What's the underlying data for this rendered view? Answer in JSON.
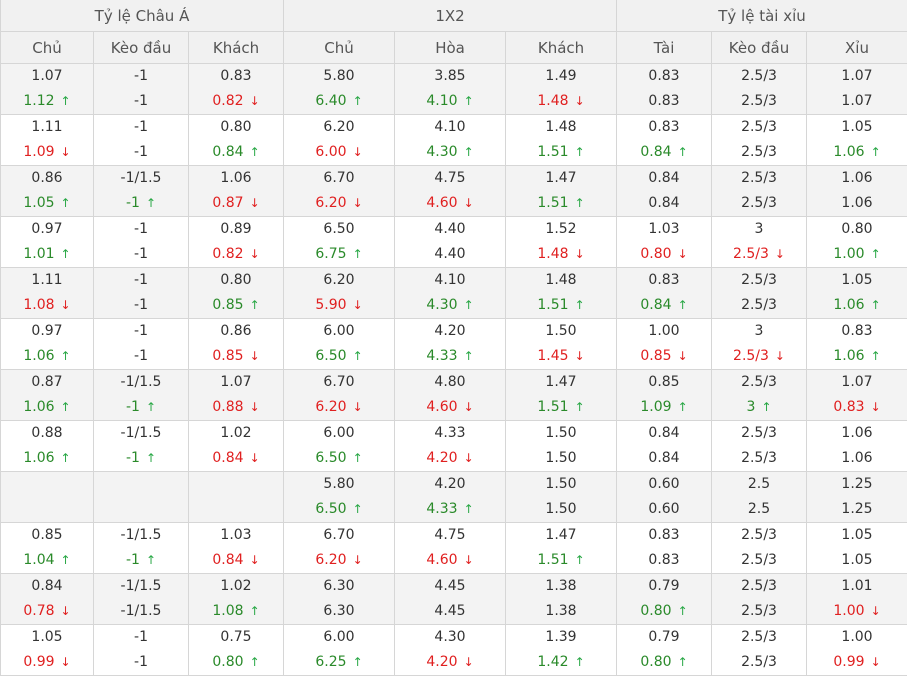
{
  "groups": [
    "Tỷ lệ Châu Á",
    "1X2",
    "Tỷ lệ tài xỉu"
  ],
  "subheaders": [
    "Chủ",
    "Kèo đầu",
    "Khách",
    "Chủ",
    "Hòa",
    "Khách",
    "Tài",
    "Kèo đầu",
    "Xỉu"
  ],
  "colors": {
    "up": "#2a8a2a",
    "down": "#e02020",
    "header_bg": "#f1f1f1",
    "shade_bg": "#f3f3f3"
  },
  "rows": [
    {
      "cells": [
        {
          "open": "1.07",
          "cur": "1.12",
          "dir": "up"
        },
        {
          "open": "-1",
          "cur": "-1",
          "dir": ""
        },
        {
          "open": "0.83",
          "cur": "0.82",
          "dir": "down"
        },
        {
          "open": "5.80",
          "cur": "6.40",
          "dir": "up"
        },
        {
          "open": "3.85",
          "cur": "4.10",
          "dir": "up"
        },
        {
          "open": "1.49",
          "cur": "1.48",
          "dir": "down"
        },
        {
          "open": "0.83",
          "cur": "0.83",
          "dir": ""
        },
        {
          "open": "2.5/3",
          "cur": "2.5/3",
          "dir": ""
        },
        {
          "open": "1.07",
          "cur": "1.07",
          "dir": ""
        }
      ]
    },
    {
      "cells": [
        {
          "open": "1.11",
          "cur": "1.09",
          "dir": "down"
        },
        {
          "open": "-1",
          "cur": "-1",
          "dir": ""
        },
        {
          "open": "0.80",
          "cur": "0.84",
          "dir": "up"
        },
        {
          "open": "6.20",
          "cur": "6.00",
          "dir": "down"
        },
        {
          "open": "4.10",
          "cur": "4.30",
          "dir": "up"
        },
        {
          "open": "1.48",
          "cur": "1.51",
          "dir": "up"
        },
        {
          "open": "0.83",
          "cur": "0.84",
          "dir": "up"
        },
        {
          "open": "2.5/3",
          "cur": "2.5/3",
          "dir": ""
        },
        {
          "open": "1.05",
          "cur": "1.06",
          "dir": "up"
        }
      ]
    },
    {
      "cells": [
        {
          "open": "0.86",
          "cur": "1.05",
          "dir": "up"
        },
        {
          "open": "-1/1.5",
          "cur": "-1",
          "dir": "up"
        },
        {
          "open": "1.06",
          "cur": "0.87",
          "dir": "down"
        },
        {
          "open": "6.70",
          "cur": "6.20",
          "dir": "down"
        },
        {
          "open": "4.75",
          "cur": "4.60",
          "dir": "down"
        },
        {
          "open": "1.47",
          "cur": "1.51",
          "dir": "up"
        },
        {
          "open": "0.84",
          "cur": "0.84",
          "dir": ""
        },
        {
          "open": "2.5/3",
          "cur": "2.5/3",
          "dir": ""
        },
        {
          "open": "1.06",
          "cur": "1.06",
          "dir": ""
        }
      ]
    },
    {
      "cells": [
        {
          "open": "0.97",
          "cur": "1.01",
          "dir": "up"
        },
        {
          "open": "-1",
          "cur": "-1",
          "dir": ""
        },
        {
          "open": "0.89",
          "cur": "0.82",
          "dir": "down"
        },
        {
          "open": "6.50",
          "cur": "6.75",
          "dir": "up"
        },
        {
          "open": "4.40",
          "cur": "4.40",
          "dir": ""
        },
        {
          "open": "1.52",
          "cur": "1.48",
          "dir": "down"
        },
        {
          "open": "1.03",
          "cur": "0.80",
          "dir": "down"
        },
        {
          "open": "3",
          "cur": "2.5/3",
          "dir": "down"
        },
        {
          "open": "0.80",
          "cur": "1.00",
          "dir": "up"
        }
      ]
    },
    {
      "cells": [
        {
          "open": "1.11",
          "cur": "1.08",
          "dir": "down"
        },
        {
          "open": "-1",
          "cur": "-1",
          "dir": ""
        },
        {
          "open": "0.80",
          "cur": "0.85",
          "dir": "up"
        },
        {
          "open": "6.20",
          "cur": "5.90",
          "dir": "down"
        },
        {
          "open": "4.10",
          "cur": "4.30",
          "dir": "up"
        },
        {
          "open": "1.48",
          "cur": "1.51",
          "dir": "up"
        },
        {
          "open": "0.83",
          "cur": "0.84",
          "dir": "up"
        },
        {
          "open": "2.5/3",
          "cur": "2.5/3",
          "dir": ""
        },
        {
          "open": "1.05",
          "cur": "1.06",
          "dir": "up"
        }
      ]
    },
    {
      "cells": [
        {
          "open": "0.97",
          "cur": "1.06",
          "dir": "up"
        },
        {
          "open": "-1",
          "cur": "-1",
          "dir": ""
        },
        {
          "open": "0.86",
          "cur": "0.85",
          "dir": "down"
        },
        {
          "open": "6.00",
          "cur": "6.50",
          "dir": "up"
        },
        {
          "open": "4.20",
          "cur": "4.33",
          "dir": "up"
        },
        {
          "open": "1.50",
          "cur": "1.45",
          "dir": "down"
        },
        {
          "open": "1.00",
          "cur": "0.85",
          "dir": "down"
        },
        {
          "open": "3",
          "cur": "2.5/3",
          "dir": "down"
        },
        {
          "open": "0.83",
          "cur": "1.06",
          "dir": "up"
        }
      ]
    },
    {
      "cells": [
        {
          "open": "0.87",
          "cur": "1.06",
          "dir": "up"
        },
        {
          "open": "-1/1.5",
          "cur": "-1",
          "dir": "up"
        },
        {
          "open": "1.07",
          "cur": "0.88",
          "dir": "down"
        },
        {
          "open": "6.70",
          "cur": "6.20",
          "dir": "down"
        },
        {
          "open": "4.80",
          "cur": "4.60",
          "dir": "down"
        },
        {
          "open": "1.47",
          "cur": "1.51",
          "dir": "up"
        },
        {
          "open": "0.85",
          "cur": "1.09",
          "dir": "up"
        },
        {
          "open": "2.5/3",
          "cur": "3",
          "dir": "up"
        },
        {
          "open": "1.07",
          "cur": "0.83",
          "dir": "down"
        }
      ]
    },
    {
      "cells": [
        {
          "open": "0.88",
          "cur": "1.06",
          "dir": "up"
        },
        {
          "open": "-1/1.5",
          "cur": "-1",
          "dir": "up"
        },
        {
          "open": "1.02",
          "cur": "0.84",
          "dir": "down"
        },
        {
          "open": "6.00",
          "cur": "6.50",
          "dir": "up"
        },
        {
          "open": "4.33",
          "cur": "4.20",
          "dir": "down"
        },
        {
          "open": "1.50",
          "cur": "1.50",
          "dir": ""
        },
        {
          "open": "0.84",
          "cur": "0.84",
          "dir": ""
        },
        {
          "open": "2.5/3",
          "cur": "2.5/3",
          "dir": ""
        },
        {
          "open": "1.06",
          "cur": "1.06",
          "dir": ""
        }
      ]
    },
    {
      "cells": [
        {
          "open": "",
          "cur": "",
          "dir": ""
        },
        {
          "open": "",
          "cur": "",
          "dir": ""
        },
        {
          "open": "",
          "cur": "",
          "dir": ""
        },
        {
          "open": "5.80",
          "cur": "6.50",
          "dir": "up"
        },
        {
          "open": "4.20",
          "cur": "4.33",
          "dir": "up"
        },
        {
          "open": "1.50",
          "cur": "1.50",
          "dir": ""
        },
        {
          "open": "0.60",
          "cur": "0.60",
          "dir": ""
        },
        {
          "open": "2.5",
          "cur": "2.5",
          "dir": ""
        },
        {
          "open": "1.25",
          "cur": "1.25",
          "dir": ""
        }
      ]
    },
    {
      "cells": [
        {
          "open": "0.85",
          "cur": "1.04",
          "dir": "up"
        },
        {
          "open": "-1/1.5",
          "cur": "-1",
          "dir": "up"
        },
        {
          "open": "1.03",
          "cur": "0.84",
          "dir": "down"
        },
        {
          "open": "6.70",
          "cur": "6.20",
          "dir": "down"
        },
        {
          "open": "4.75",
          "cur": "4.60",
          "dir": "down"
        },
        {
          "open": "1.47",
          "cur": "1.51",
          "dir": "up"
        },
        {
          "open": "0.83",
          "cur": "0.83",
          "dir": ""
        },
        {
          "open": "2.5/3",
          "cur": "2.5/3",
          "dir": ""
        },
        {
          "open": "1.05",
          "cur": "1.05",
          "dir": ""
        }
      ]
    },
    {
      "cells": [
        {
          "open": "0.84",
          "cur": "0.78",
          "dir": "down"
        },
        {
          "open": "-1/1.5",
          "cur": "-1/1.5",
          "dir": ""
        },
        {
          "open": "1.02",
          "cur": "1.08",
          "dir": "up"
        },
        {
          "open": "6.30",
          "cur": "6.30",
          "dir": ""
        },
        {
          "open": "4.45",
          "cur": "4.45",
          "dir": ""
        },
        {
          "open": "1.38",
          "cur": "1.38",
          "dir": ""
        },
        {
          "open": "0.79",
          "cur": "0.80",
          "dir": "up"
        },
        {
          "open": "2.5/3",
          "cur": "2.5/3",
          "dir": ""
        },
        {
          "open": "1.01",
          "cur": "1.00",
          "dir": "down"
        }
      ]
    },
    {
      "cells": [
        {
          "open": "1.05",
          "cur": "0.99",
          "dir": "down"
        },
        {
          "open": "-1",
          "cur": "-1",
          "dir": ""
        },
        {
          "open": "0.75",
          "cur": "0.80",
          "dir": "up"
        },
        {
          "open": "6.00",
          "cur": "6.25",
          "dir": "up"
        },
        {
          "open": "4.30",
          "cur": "4.20",
          "dir": "down"
        },
        {
          "open": "1.39",
          "cur": "1.42",
          "dir": "up"
        },
        {
          "open": "0.79",
          "cur": "0.80",
          "dir": "up"
        },
        {
          "open": "2.5/3",
          "cur": "2.5/3",
          "dir": ""
        },
        {
          "open": "1.00",
          "cur": "0.99",
          "dir": "down"
        }
      ]
    }
  ]
}
